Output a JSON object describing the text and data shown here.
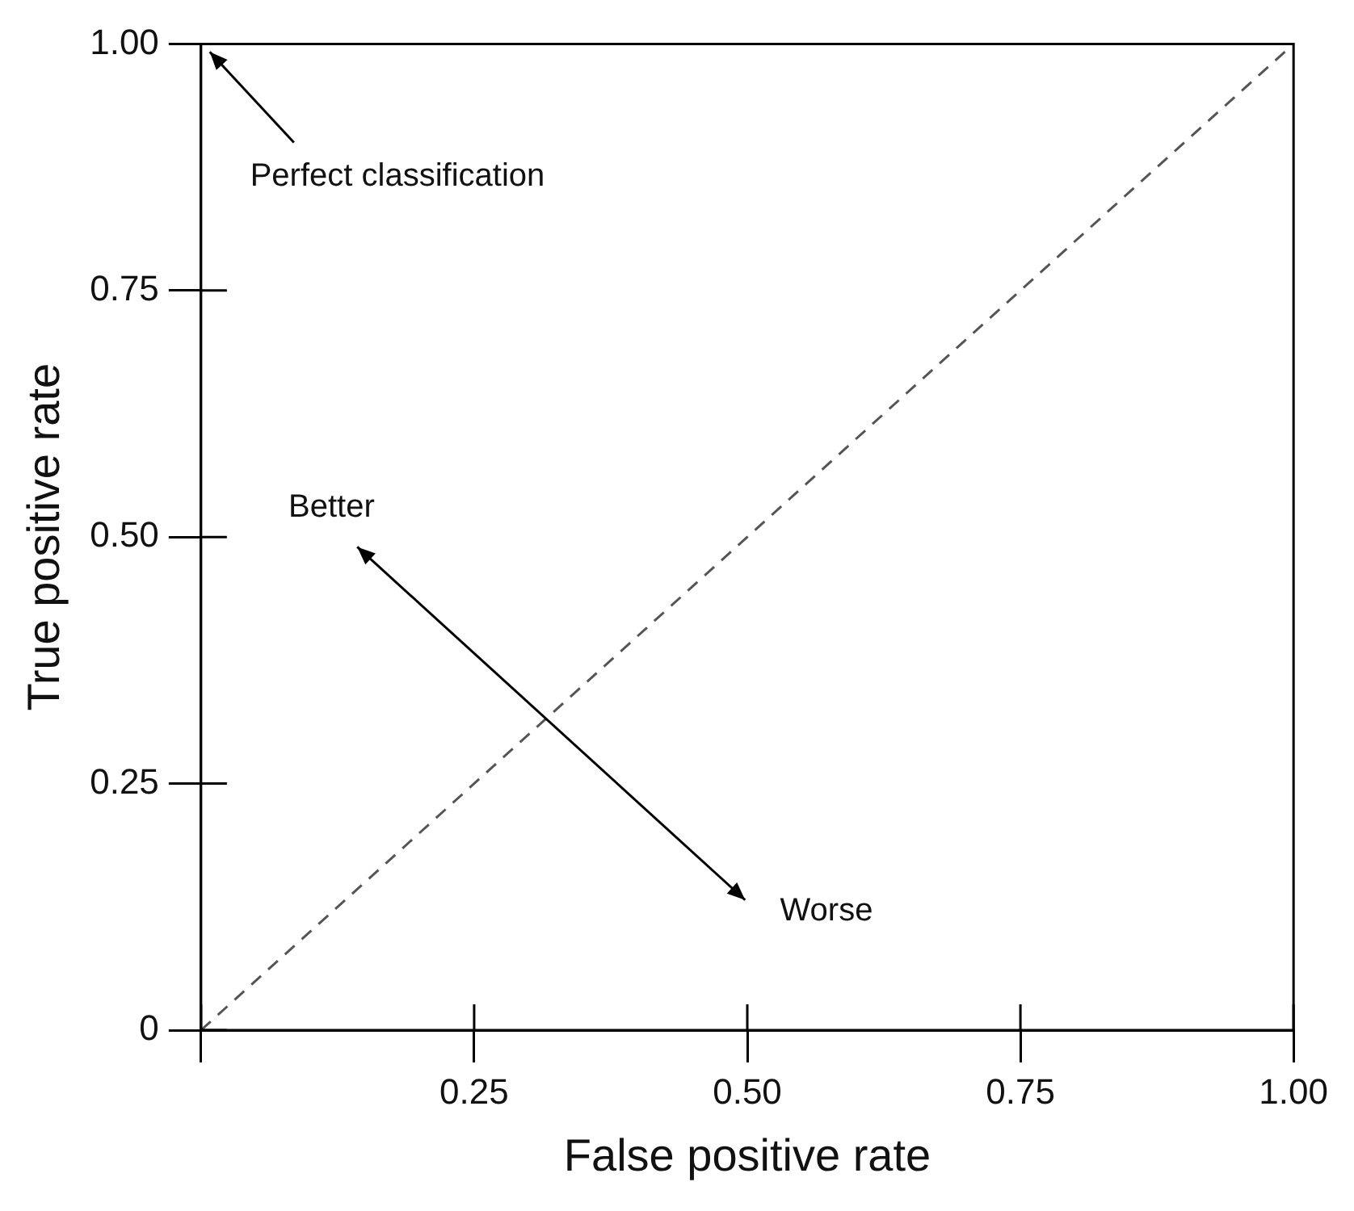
{
  "chart_data": {
    "type": "line",
    "x": [
      0,
      1
    ],
    "series": [
      {
        "values": [
          0,
          1
        ],
        "color": "#555555",
        "line_style": "dashed"
      }
    ],
    "marker": "none",
    "xlabel": "False positive rate",
    "ylabel": "True positive rate",
    "xlim": [
      0,
      1
    ],
    "ylim": [
      0,
      1
    ],
    "xticks": [
      {
        "value": 0,
        "label": null
      },
      {
        "value": 0.25,
        "label": "0.25"
      },
      {
        "value": 0.5,
        "label": "0.50"
      },
      {
        "value": 0.75,
        "label": "0.75"
      },
      {
        "value": 1,
        "label": "1.00"
      }
    ],
    "yticks": [
      0,
      {
        "value": 0.25,
        "label": "0.25"
      },
      {
        "value": 0.5,
        "label": "0.50"
      },
      {
        "value": 0.75,
        "label": "0.75"
      },
      {
        "value": 1,
        "label": "1.00"
      }
    ],
    "annotations": [
      "Perfect classification",
      "Better",
      "Worse"
    ]
  }
}
